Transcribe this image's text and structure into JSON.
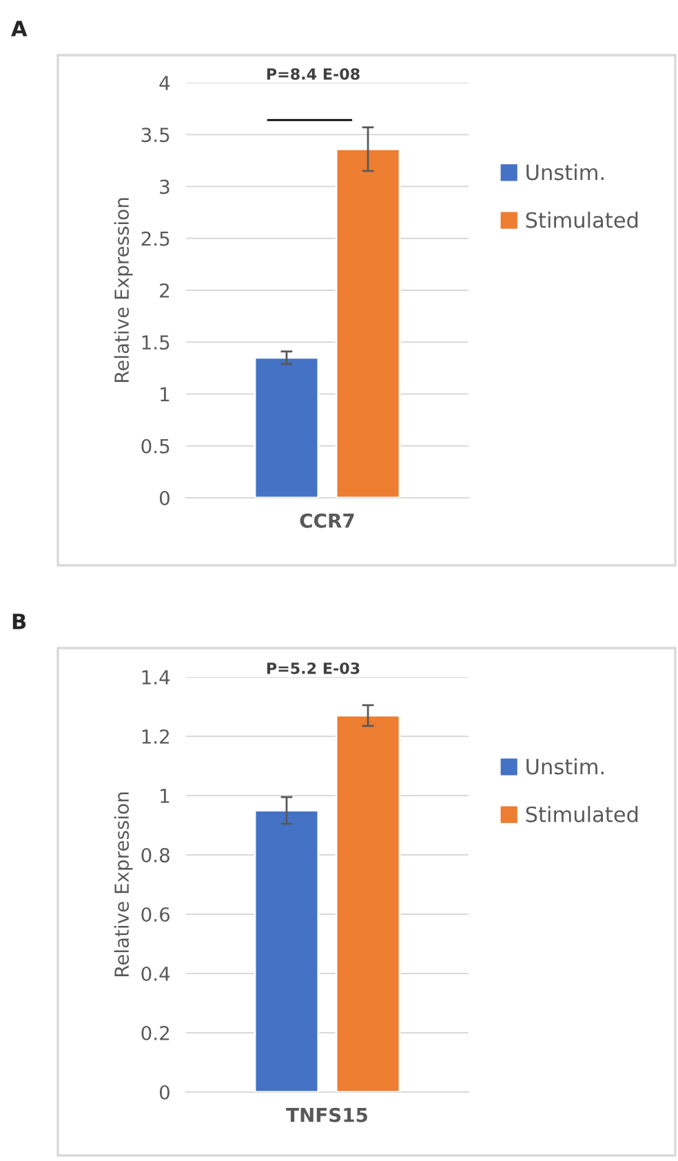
{
  "chart_data": [
    {
      "type": "bar",
      "title": "A",
      "ylabel": "Relative Expression",
      "categories": [
        "CCR7"
      ],
      "series": [
        {
          "name": "Unstim.",
          "color": "#4472c4",
          "values": [
            1.35
          ],
          "errors": [
            0.06
          ]
        },
        {
          "name": "Stimulated",
          "color": "#ed7d31",
          "values": [
            3.36
          ],
          "errors": [
            0.21
          ]
        }
      ],
      "ylim": [
        0,
        4
      ],
      "yticks": [
        0,
        0.5,
        1,
        1.5,
        2,
        2.5,
        3,
        3.5,
        4
      ],
      "grid": "y",
      "legend": "right",
      "annotations": [
        "P=8.4 E-08"
      ]
    },
    {
      "type": "bar",
      "title": "B",
      "ylabel": "Relative Expression",
      "categories": [
        "TNFS15"
      ],
      "series": [
        {
          "name": "Unstim.",
          "color": "#4472c4",
          "values": [
            0.95
          ],
          "errors": [
            0.045
          ]
        },
        {
          "name": "Stimulated",
          "color": "#ed7d31",
          "values": [
            1.27
          ],
          "errors": [
            0.035
          ]
        }
      ],
      "ylim": [
        0,
        1.4
      ],
      "yticks": [
        0,
        0.2,
        0.4,
        0.6,
        0.8,
        1,
        1.2,
        1.4
      ],
      "grid": "y",
      "legend": "right",
      "annotations": [
        "P=5.2 E-03"
      ]
    }
  ]
}
